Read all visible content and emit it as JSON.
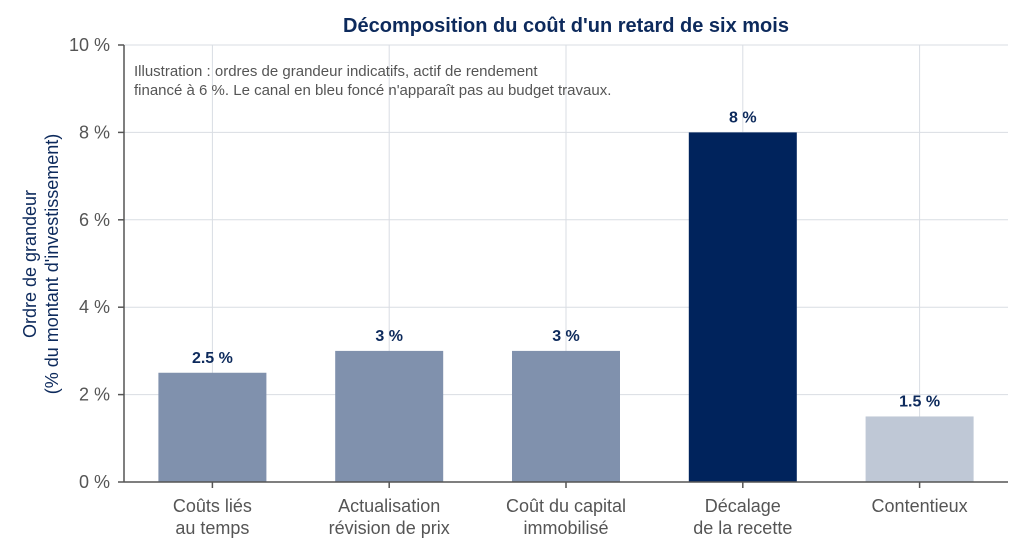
{
  "chart_data": {
    "type": "bar",
    "title": "Décomposition du coût d'un retard de six mois",
    "ylabel_lines": [
      "Ordre de grandeur",
      "(% du montant d'investissement)"
    ],
    "annotation_lines": [
      "Illustration : ordres de grandeur indicatifs, actif de rendement",
      "financé à 6 %. Le canal en bleu foncé n'apparaît pas au budget travaux."
    ],
    "categories": [
      [
        "Coûts liés",
        "au temps"
      ],
      [
        "Actualisation",
        "révision de prix"
      ],
      [
        "Coût du capital",
        "immobilisé"
      ],
      [
        "Décalage",
        "de la recette"
      ],
      [
        "Contentieux"
      ]
    ],
    "values": [
      2.5,
      3,
      3,
      8,
      1.5
    ],
    "value_labels": [
      "2.5 %",
      "3 %",
      "3 %",
      "8 %",
      "1.5 %"
    ],
    "bar_colors": [
      "#8091ad",
      "#8091ad",
      "#8091ad",
      "#00235c",
      "#bfc8d6"
    ],
    "ylim": [
      0,
      10
    ],
    "yticks": [
      0,
      2,
      4,
      6,
      8,
      10
    ],
    "ytick_labels": [
      "0 %",
      "2 %",
      "4 %",
      "6 %",
      "8 %",
      "10 %"
    ],
    "grid": true,
    "legend": "none"
  }
}
